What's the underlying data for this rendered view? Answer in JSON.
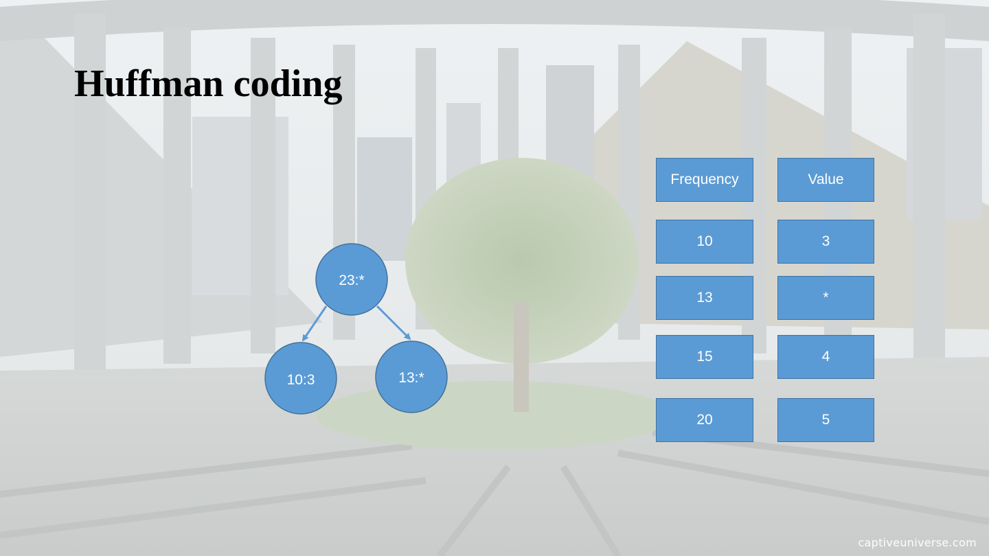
{
  "slide": {
    "title": "Huffman coding",
    "watermark": "captiveuniverse.com"
  },
  "table": {
    "headers": {
      "frequency": "Frequency",
      "value": "Value"
    },
    "rows": [
      {
        "frequency": "10",
        "value": "3"
      },
      {
        "frequency": "13",
        "value": "*"
      },
      {
        "frequency": "15",
        "value": "4"
      },
      {
        "frequency": "20",
        "value": "5"
      }
    ]
  },
  "tree": {
    "root": {
      "label": "23:*"
    },
    "left": {
      "label": "10:3"
    },
    "right": {
      "label": "13:*"
    }
  },
  "colors": {
    "node_fill": "#5b9bd5",
    "node_border": "#41719c",
    "edge": "#5b9bd5",
    "text": "#ffffff"
  }
}
